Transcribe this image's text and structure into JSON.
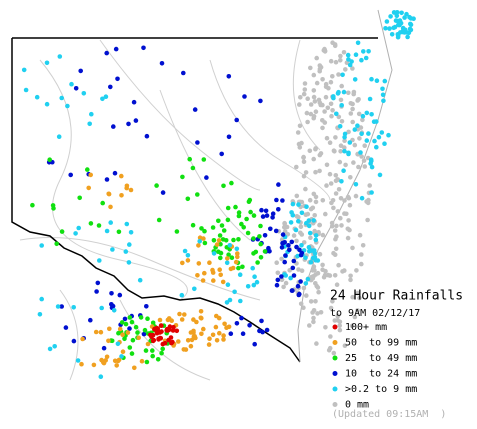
{
  "legend": {
    "title": "24 Hour Rainfalls",
    "subtitle": "to 9AM 02/12/17",
    "items": [
      {
        "label": "100+ mm",
        "color": "#e00000"
      },
      {
        "label": "50  to 99 mm",
        "color": "#f0a020"
      },
      {
        "label": "25  to 49 mm",
        "color": "#10e010"
      },
      {
        "label": "10  to 24 mm",
        "color": "#0010d0"
      },
      {
        ">": null,
        "label": ">0.2 to 9 mm",
        "color": "#20d0f0"
      },
      {
        "label": "0 mm",
        "color": "#c0c0c0"
      }
    ],
    "updated": "(Updated 09:15AM  )"
  }
}
